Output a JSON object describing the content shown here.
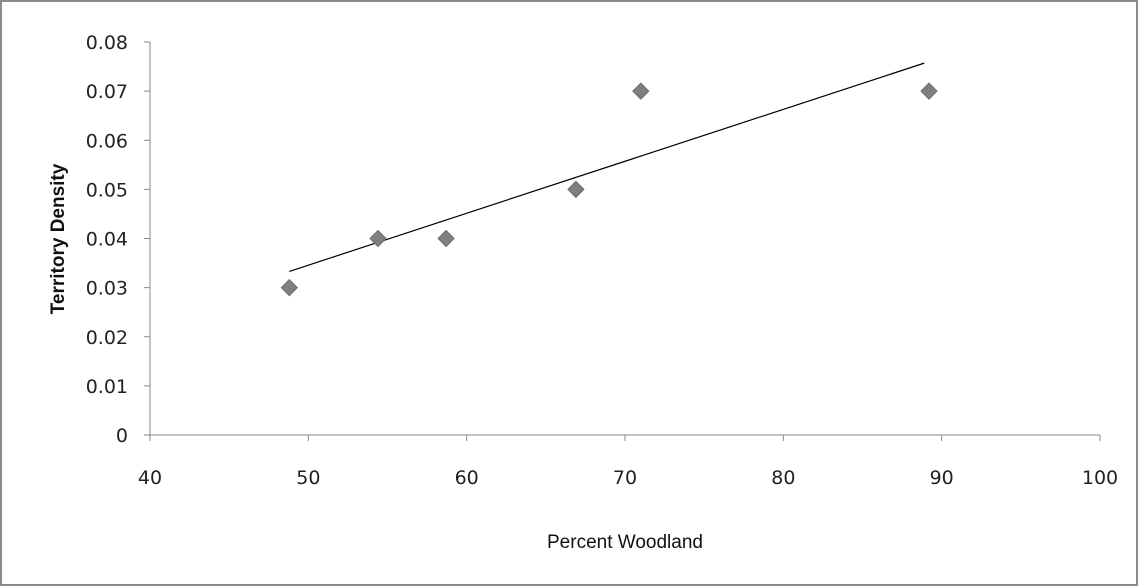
{
  "chart_data": {
    "type": "scatter",
    "title": "",
    "xlabel": "Percent Woodland",
    "ylabel": "Territory Density",
    "xlim": [
      40,
      100
    ],
    "ylim": [
      0,
      0.08
    ],
    "x_ticks": [
      "40",
      "50",
      "60",
      "70",
      "80",
      "90",
      "100"
    ],
    "y_ticks": [
      "0",
      "0.01",
      "0.02",
      "0.03",
      "0.04",
      "0.05",
      "0.06",
      "0.07",
      "0.08"
    ],
    "grid": false,
    "legend": "none",
    "marker_color": "#7f7f7f",
    "series": [
      {
        "x": [
          48.8,
          54.4,
          58.7,
          66.9,
          71.0,
          89.2
        ],
        "y": [
          0.03,
          0.04,
          0.04,
          0.05,
          0.07,
          0.07
        ]
      }
    ],
    "trendline": {
      "type": "linear",
      "x": [
        48.8,
        88.9
      ],
      "y": [
        0.0333,
        0.0757
      ],
      "color": "#000000"
    }
  }
}
